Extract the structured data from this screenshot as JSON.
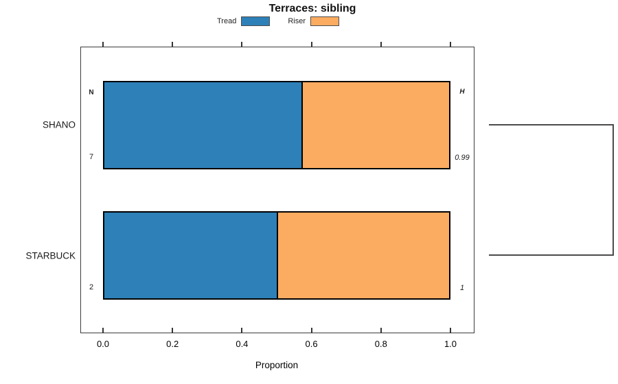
{
  "title": "Terraces: sibling",
  "chart_data": {
    "type": "bar",
    "orientation": "horizontal",
    "stacked": true,
    "title": "Terraces: sibling",
    "xlabel": "Proportion",
    "xlim": [
      0,
      1
    ],
    "x_tick_labels": [
      "0.0",
      "0.2",
      "0.4",
      "0.6",
      "0.8",
      "1.0"
    ],
    "grid": false,
    "legend_position": "top-center",
    "categories": [
      "SHANO",
      "STARBUCK"
    ],
    "series": [
      {
        "name": "Tread",
        "color": "#2E80B8",
        "values": [
          0.571,
          0.5
        ]
      },
      {
        "name": "Riser",
        "color": "#FBAC61",
        "values": [
          0.429,
          0.5
        ]
      }
    ],
    "annotations": {
      "left_header": "N",
      "right_header": "H",
      "left_values": [
        "7",
        "2"
      ],
      "right_values": [
        "0.99",
        "1"
      ]
    },
    "dendrogram": {
      "side": "right",
      "joins": [
        "SHANO",
        "STARBUCK"
      ]
    }
  }
}
